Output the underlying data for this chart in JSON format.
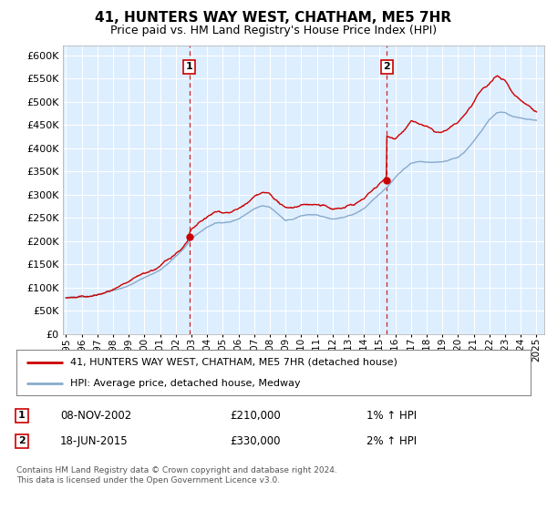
{
  "title": "41, HUNTERS WAY WEST, CHATHAM, ME5 7HR",
  "subtitle": "Price paid vs. HM Land Registry's House Price Index (HPI)",
  "ylim": [
    0,
    620000
  ],
  "xlim_start": 1994.8,
  "xlim_end": 2025.5,
  "sale1_x": 2002.86,
  "sale1_y": 210000,
  "sale1_label": "1",
  "sale1_date": "08-NOV-2002",
  "sale1_price": "£210,000",
  "sale1_hpi": "1% ↑ HPI",
  "sale2_x": 2015.46,
  "sale2_y": 330000,
  "sale2_label": "2",
  "sale2_date": "18-JUN-2015",
  "sale2_price": "£330,000",
  "sale2_hpi": "2% ↑ HPI",
  "line_color_property": "#cc0000",
  "line_color_hpi": "#88aacc",
  "background_plot": "#ddeeff",
  "grid_color": "#ffffff",
  "legend_label_property": "41, HUNTERS WAY WEST, CHATHAM, ME5 7HR (detached house)",
  "legend_label_hpi": "HPI: Average price, detached house, Medway",
  "footnote": "Contains HM Land Registry data © Crown copyright and database right 2024.\nThis data is licensed under the Open Government Licence v3.0.",
  "hpi_base": [
    [
      1995.0,
      78000
    ],
    [
      1995.5,
      79500
    ],
    [
      1996.0,
      81000
    ],
    [
      1996.5,
      83000
    ],
    [
      1997.0,
      87000
    ],
    [
      1997.5,
      91000
    ],
    [
      1998.0,
      96000
    ],
    [
      1998.5,
      100000
    ],
    [
      1999.0,
      107000
    ],
    [
      1999.5,
      115000
    ],
    [
      2000.0,
      124000
    ],
    [
      2000.5,
      132000
    ],
    [
      2001.0,
      140000
    ],
    [
      2001.5,
      153000
    ],
    [
      2002.0,
      168000
    ],
    [
      2002.5,
      185000
    ],
    [
      2003.0,
      205000
    ],
    [
      2003.5,
      218000
    ],
    [
      2004.0,
      230000
    ],
    [
      2004.5,
      238000
    ],
    [
      2005.0,
      240000
    ],
    [
      2005.5,
      242000
    ],
    [
      2006.0,
      248000
    ],
    [
      2006.5,
      258000
    ],
    [
      2007.0,
      268000
    ],
    [
      2007.5,
      274000
    ],
    [
      2008.0,
      272000
    ],
    [
      2008.5,
      258000
    ],
    [
      2009.0,
      242000
    ],
    [
      2009.5,
      245000
    ],
    [
      2010.0,
      252000
    ],
    [
      2010.5,
      255000
    ],
    [
      2011.0,
      252000
    ],
    [
      2011.5,
      248000
    ],
    [
      2012.0,
      245000
    ],
    [
      2012.5,
      248000
    ],
    [
      2013.0,
      252000
    ],
    [
      2013.5,
      258000
    ],
    [
      2014.0,
      268000
    ],
    [
      2014.5,
      285000
    ],
    [
      2015.0,
      302000
    ],
    [
      2015.5,
      318000
    ],
    [
      2016.0,
      338000
    ],
    [
      2016.5,
      355000
    ],
    [
      2017.0,
      368000
    ],
    [
      2017.5,
      372000
    ],
    [
      2018.0,
      370000
    ],
    [
      2018.5,
      368000
    ],
    [
      2019.0,
      370000
    ],
    [
      2019.5,
      375000
    ],
    [
      2020.0,
      380000
    ],
    [
      2020.5,
      395000
    ],
    [
      2021.0,
      415000
    ],
    [
      2021.5,
      438000
    ],
    [
      2022.0,
      462000
    ],
    [
      2022.5,
      478000
    ],
    [
      2023.0,
      478000
    ],
    [
      2023.5,
      470000
    ],
    [
      2024.0,
      465000
    ],
    [
      2024.5,
      462000
    ],
    [
      2025.0,
      460000
    ]
  ],
  "prop_extra": [
    [
      2016.0,
      420000
    ],
    [
      2016.5,
      438000
    ],
    [
      2017.0,
      458000
    ],
    [
      2017.5,
      452000
    ],
    [
      2018.0,
      445000
    ],
    [
      2018.5,
      432000
    ],
    [
      2019.0,
      430000
    ],
    [
      2019.5,
      438000
    ],
    [
      2020.0,
      448000
    ],
    [
      2020.5,
      468000
    ],
    [
      2021.0,
      492000
    ],
    [
      2021.5,
      515000
    ],
    [
      2022.0,
      528000
    ],
    [
      2022.5,
      545000
    ],
    [
      2023.0,
      538000
    ],
    [
      2023.5,
      510000
    ],
    [
      2024.0,
      498000
    ],
    [
      2024.5,
      488000
    ],
    [
      2025.0,
      478000
    ]
  ]
}
